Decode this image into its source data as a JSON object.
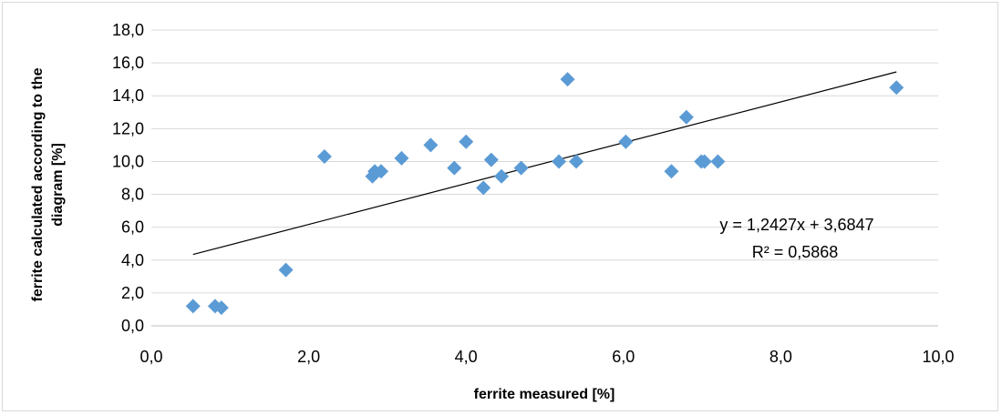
{
  "chart_data": {
    "type": "scatter",
    "title": "",
    "xlabel": "ferrite measured [%]",
    "ylabel_lines": [
      "ferrite calculated according to the",
      "diagram [%]"
    ],
    "xlim": [
      0,
      10
    ],
    "ylim": [
      0,
      18
    ],
    "x_ticks": [
      "0,0",
      "2,0",
      "4,0",
      "6,0",
      "8,0",
      "10,0"
    ],
    "y_ticks": [
      "0,0",
      "2,0",
      "4,0",
      "6,0",
      "8,0",
      "10,0",
      "12,0",
      "14,0",
      "16,0",
      "18,0"
    ],
    "grid": "horizontal",
    "marker_color": "#5b9bd5",
    "points": [
      {
        "x": 0.53,
        "y": 1.2
      },
      {
        "x": 0.81,
        "y": 1.2
      },
      {
        "x": 0.89,
        "y": 1.1
      },
      {
        "x": 1.71,
        "y": 3.4
      },
      {
        "x": 2.2,
        "y": 10.3
      },
      {
        "x": 2.81,
        "y": 9.1
      },
      {
        "x": 2.84,
        "y": 9.4
      },
      {
        "x": 2.92,
        "y": 9.4
      },
      {
        "x": 3.18,
        "y": 10.2
      },
      {
        "x": 3.55,
        "y": 11.0
      },
      {
        "x": 3.85,
        "y": 9.6
      },
      {
        "x": 4.0,
        "y": 11.2
      },
      {
        "x": 4.22,
        "y": 8.4
      },
      {
        "x": 4.32,
        "y": 10.1
      },
      {
        "x": 4.45,
        "y": 9.1
      },
      {
        "x": 4.7,
        "y": 9.6
      },
      {
        "x": 5.18,
        "y": 10.0
      },
      {
        "x": 5.29,
        "y": 15.0
      },
      {
        "x": 5.4,
        "y": 10.0
      },
      {
        "x": 6.03,
        "y": 11.2
      },
      {
        "x": 6.61,
        "y": 9.4
      },
      {
        "x": 6.8,
        "y": 12.7
      },
      {
        "x": 6.99,
        "y": 10.0
      },
      {
        "x": 7.03,
        "y": 10.0
      },
      {
        "x": 7.2,
        "y": 10.0
      },
      {
        "x": 9.47,
        "y": 14.5
      }
    ],
    "trendline": {
      "slope": 1.2427,
      "intercept": 3.6847,
      "x_range": [
        0.53,
        9.47
      ],
      "color": "#000000",
      "equation": "y = 1,2427x + 3,6847",
      "r_squared": "R² = 0,5868"
    }
  }
}
